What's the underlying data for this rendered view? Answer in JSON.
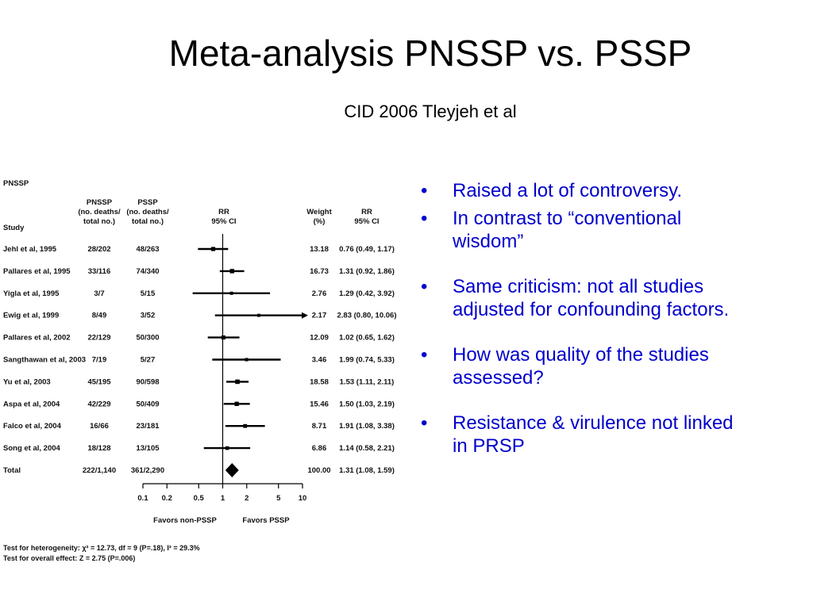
{
  "slide": {
    "title": "Meta-analysis PNSSP vs. PSSP",
    "subtitle": "CID 2006 Tleyjeh et al"
  },
  "forest_plot": {
    "section_label": "PNSSP",
    "headers": {
      "study": "Study",
      "pnssp": [
        "PNSSP",
        "(no. deaths/",
        "total no.)"
      ],
      "pssp": [
        "PSSP",
        "(no. deaths/",
        "total no.)"
      ],
      "rr": [
        "RR",
        "95% CI"
      ],
      "weight": [
        "Weight",
        "(%)"
      ],
      "rr_ci": [
        "RR",
        "95% CI"
      ]
    },
    "rows": [
      {
        "study": "Jehl et al, 1995",
        "pnssp": "28/202",
        "pssp": "48/263",
        "weight": "13.18",
        "rr_text": "0.76 (0.49, 1.17)",
        "rr": 0.76,
        "lo": 0.49,
        "hi": 1.17
      },
      {
        "study": "Pallares et al, 1995",
        "pnssp": "33/116",
        "pssp": "74/340",
        "weight": "16.73",
        "rr_text": "1.31 (0.92, 1.86)",
        "rr": 1.31,
        "lo": 0.92,
        "hi": 1.86
      },
      {
        "study": "Yigla et al, 1995",
        "pnssp": "3/7",
        "pssp": "5/15",
        "weight": "2.76",
        "rr_text": "1.29 (0.42, 3.92)",
        "rr": 1.29,
        "lo": 0.42,
        "hi": 3.92
      },
      {
        "study": "Ewig et al, 1999",
        "pnssp": "8/49",
        "pssp": "3/52",
        "weight": "2.17",
        "rr_text": "2.83 (0.80, 10.06)",
        "rr": 2.83,
        "lo": 0.8,
        "hi": 10.06
      },
      {
        "study": "Pallares et al, 2002",
        "pnssp": "22/129",
        "pssp": "50/300",
        "weight": "12.09",
        "rr_text": "1.02 (0.65, 1.62)",
        "rr": 1.02,
        "lo": 0.65,
        "hi": 1.62
      },
      {
        "study": "Sangthawan et al, 2003",
        "pnssp": "7/19",
        "pssp": "5/27",
        "weight": "3.46",
        "rr_text": "1.99 (0.74, 5.33)",
        "rr": 1.99,
        "lo": 0.74,
        "hi": 5.33
      },
      {
        "study": "Yu et al, 2003",
        "pnssp": "45/195",
        "pssp": "90/598",
        "weight": "18.58",
        "rr_text": "1.53 (1.11, 2.11)",
        "rr": 1.53,
        "lo": 1.11,
        "hi": 2.11
      },
      {
        "study": "Aspa et al, 2004",
        "pnssp": "42/229",
        "pssp": "50/409",
        "weight": "15.46",
        "rr_text": "1.50 (1.03, 2.19)",
        "rr": 1.5,
        "lo": 1.03,
        "hi": 2.19
      },
      {
        "study": "Falco et al, 2004",
        "pnssp": "16/66",
        "pssp": "23/181",
        "weight": "8.71",
        "rr_text": "1.91 (1.08, 3.38)",
        "rr": 1.91,
        "lo": 1.08,
        "hi": 3.38
      },
      {
        "study": "Song et al, 2004",
        "pnssp": "18/128",
        "pssp": "13/105",
        "weight": "6.86",
        "rr_text": "1.14 (0.58, 2.21)",
        "rr": 1.14,
        "lo": 0.58,
        "hi": 2.21
      }
    ],
    "total": {
      "study": "Total",
      "pnssp": "222/1,140",
      "pssp": "361/2,290",
      "weight": "100.00",
      "rr_text": "1.31 (1.08, 1.59)",
      "rr": 1.31,
      "lo": 1.08,
      "hi": 1.59
    },
    "axis_ticks": [
      "0.1",
      "0.2",
      "0.5",
      "1",
      "2",
      "5",
      "10"
    ],
    "axis_tick_values": [
      0.1,
      0.2,
      0.5,
      1,
      2,
      5,
      10
    ],
    "favors_left": "Favors non-PSSP",
    "favors_right": "Favors PSSP",
    "footnote_heterogeneity": "Test for heterogeneity: χ² = 12.73, df = 9 (P=.18), I² = 29.3%",
    "footnote_overall": "Test for overall effect:  Z = 2.75 (P=.006)"
  },
  "chart_data": {
    "type": "scatter",
    "title": "",
    "xlabel": "RR 95% CI",
    "xscale": "log",
    "xlim": [
      0.1,
      10
    ],
    "categories": [
      "Jehl et al, 1995",
      "Pallares et al, 1995",
      "Yigla et al, 1995",
      "Ewig et al, 1999",
      "Pallares et al, 2002",
      "Sangthawan et al, 2003",
      "Yu et al, 2003",
      "Aspa et al, 2004",
      "Falco et al, 2004",
      "Song et al, 2004",
      "Total"
    ],
    "values": [
      0.76,
      1.31,
      1.29,
      2.83,
      1.02,
      1.99,
      1.53,
      1.5,
      1.91,
      1.14,
      1.31
    ],
    "ci_low": [
      0.49,
      0.92,
      0.42,
      0.8,
      0.65,
      0.74,
      1.11,
      1.03,
      1.08,
      0.58,
      1.08
    ],
    "ci_high": [
      1.17,
      1.86,
      3.92,
      10.06,
      1.62,
      5.33,
      2.11,
      2.19,
      3.38,
      2.21,
      1.59
    ],
    "weights": [
      13.18,
      16.73,
      2.76,
      2.17,
      12.09,
      3.46,
      18.58,
      15.46,
      8.71,
      6.86,
      100.0
    ]
  },
  "bullets": [
    "Raised a lot of controversy.",
    "In contrast to “conventional wisdom”",
    "Same criticism: not all studies adjusted for confounding factors.",
    "How was quality of the studies assessed?",
    "Resistance & virulence not linked in PRSP"
  ],
  "bullet_glyph": "•",
  "colors": {
    "bullet_text": "#0000cc",
    "title_text": "#000000"
  }
}
